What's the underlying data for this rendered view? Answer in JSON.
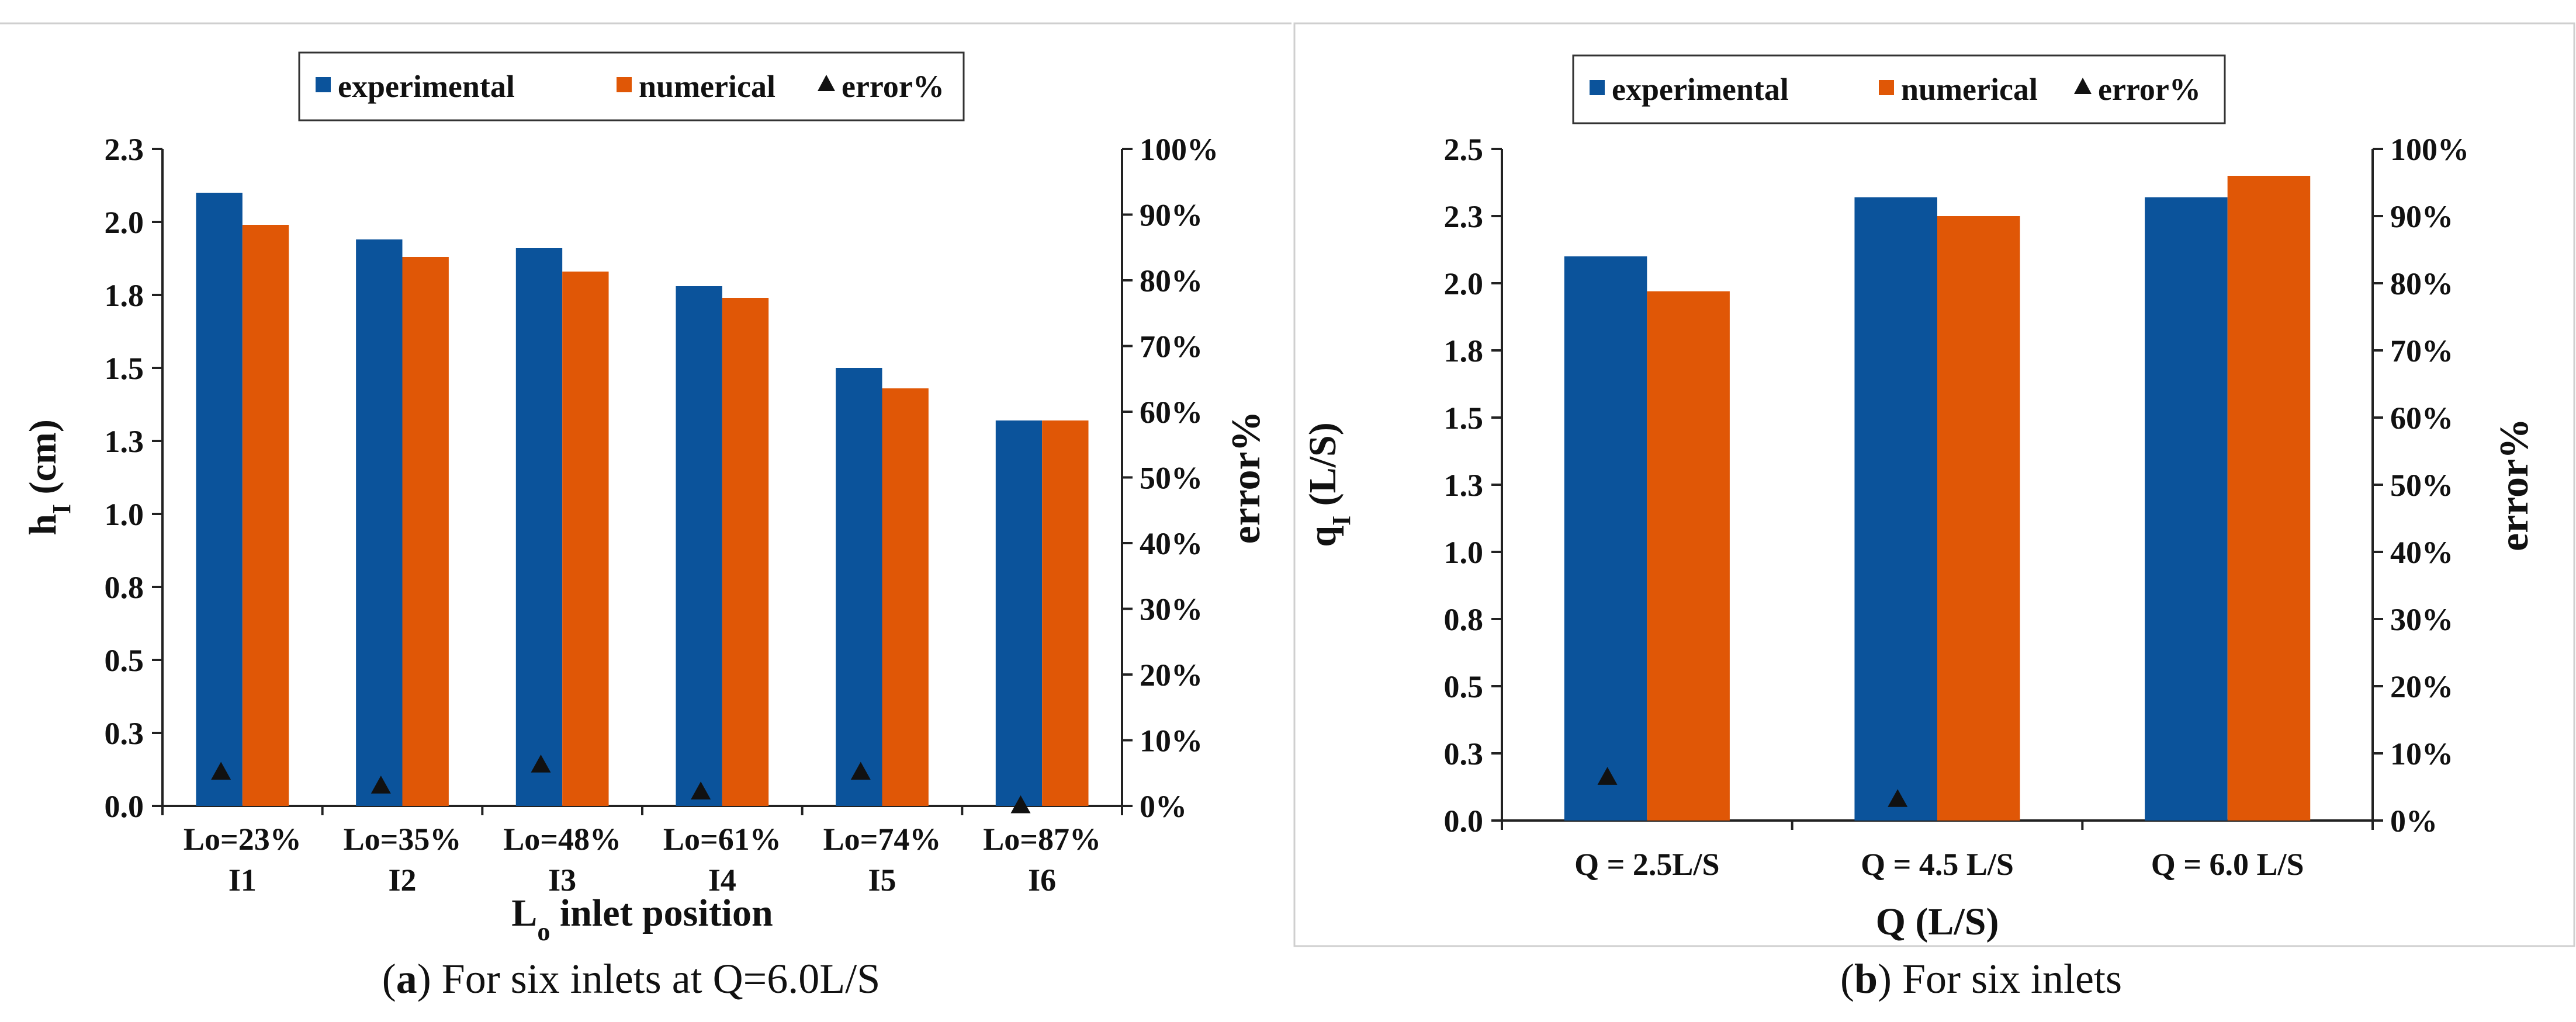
{
  "colors": {
    "experimental": "#0b539b",
    "numerical": "#e05706",
    "marker": "#111111",
    "panel_border": "#cfcfcf"
  },
  "chart_data": [
    {
      "type": "bar",
      "panel_letter": "a",
      "caption": "For six inlets at Q=6.0L/S",
      "legend": {
        "placement": "top-center",
        "entries": [
          "experimental",
          "numerical",
          "error%"
        ]
      },
      "categories": [
        [
          "Lo=23%",
          "I1"
        ],
        [
          "Lo=35%",
          "I2"
        ],
        [
          "Lo=48%",
          "I3"
        ],
        [
          "Lo=61%",
          "I4"
        ],
        [
          "Lo=74%",
          "I5"
        ],
        [
          "Lo=87%",
          "I6"
        ]
      ],
      "series": [
        {
          "name": "experimental",
          "values": [
            2.1,
            1.94,
            1.91,
            1.78,
            1.5,
            1.32
          ]
        },
        {
          "name": "numerical",
          "values": [
            1.99,
            1.88,
            1.83,
            1.74,
            1.43,
            1.32
          ]
        },
        {
          "name": "error%",
          "type": "marker",
          "axis": "right",
          "values": [
            5.2,
            3.1,
            6.3,
            2.2,
            5.2,
            0.1
          ]
        }
      ],
      "xlabel_main": "L",
      "xlabel_sub": "o",
      "xlabel_rest": " inlet position",
      "ylabel_main": "h",
      "ylabel_sub": "I",
      "ylabel_rest": " (cm)",
      "y2label": "error%",
      "ylim": [
        0,
        2.25
      ],
      "yticks": [
        0,
        0.25,
        0.5,
        0.75,
        1.0,
        1.25,
        1.5,
        1.75,
        2.0,
        2.25
      ],
      "yticklabels": [
        "0.0",
        "0.3",
        "0.5",
        "0.8",
        "1.0",
        "1.3",
        "1.5",
        "1.8",
        "2.0",
        "2.3"
      ],
      "y2lim": [
        0,
        100
      ],
      "y2ticks": [
        0,
        10,
        20,
        30,
        40,
        50,
        60,
        70,
        80,
        90,
        100
      ],
      "y2ticklabels": [
        "0%",
        "10%",
        "20%",
        "30%",
        "40%",
        "50%",
        "60%",
        "70%",
        "80%",
        "90%",
        "100%"
      ],
      "grid": false
    },
    {
      "type": "bar",
      "panel_letter": "b",
      "caption": "For six inlets",
      "legend": {
        "placement": "top-center",
        "entries": [
          "experimental",
          "numerical",
          "error%"
        ]
      },
      "categories": [
        [
          "Q = 2.5L/S"
        ],
        [
          "Q = 4.5 L/S"
        ],
        [
          "Q = 6.0 L/S"
        ]
      ],
      "series": [
        {
          "name": "experimental",
          "values": [
            2.1,
            2.32,
            2.32
          ]
        },
        {
          "name": "numerical",
          "values": [
            1.97,
            2.25,
            2.4
          ]
        },
        {
          "name": "error%",
          "type": "marker",
          "axis": "right",
          "values": [
            6.5,
            3.2,
            null
          ]
        }
      ],
      "xlabel_main": "Q (L/S)",
      "xlabel_sub": "",
      "xlabel_rest": "",
      "ylabel_main": "q",
      "ylabel_sub": "I",
      "ylabel_rest": " (L/S)",
      "y2label": "error%",
      "ylim": [
        0,
        2.5
      ],
      "yticks": [
        0,
        0.25,
        0.5,
        0.75,
        1.0,
        1.25,
        1.5,
        1.75,
        2.0,
        2.25,
        2.5
      ],
      "yticklabels": [
        "0.0",
        "0.3",
        "0.5",
        "0.8",
        "1.0",
        "1.3",
        "1.5",
        "1.8",
        "2.0",
        "2.3",
        "2.5"
      ],
      "y2lim": [
        0,
        100
      ],
      "y2ticks": [
        0,
        10,
        20,
        30,
        40,
        50,
        60,
        70,
        80,
        90,
        100
      ],
      "y2ticklabels": [
        "0%",
        "10%",
        "20%",
        "30%",
        "40%",
        "50%",
        "60%",
        "70%",
        "80%",
        "90%",
        "100%"
      ],
      "grid": false
    }
  ]
}
